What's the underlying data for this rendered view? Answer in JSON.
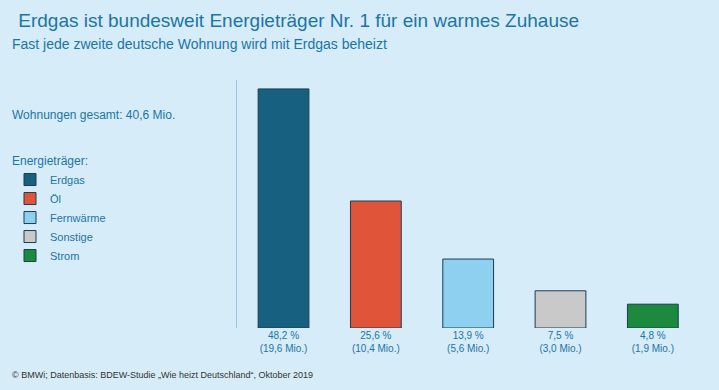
{
  "chart_data": {
    "type": "bar",
    "title": "Erdgas ist bundesweit Energieträger Nr. 1 für ein warmes Zuhause",
    "subtitle": "Fast jede zweite deutsche Wohnung wird mit Erdgas beheizt",
    "total_text": "Wohnungen gesamt: 40,6 Mio.",
    "legend_title": "Energieträger:",
    "source": "© BMWi; Datenbasis: BDEW-Studie „Wie heizt Deutschland“, Oktober 2019",
    "categories": [
      "Erdgas",
      "Öl",
      "Fernwärme",
      "Sonstige",
      "Strom"
    ],
    "values": [
      48.2,
      25.6,
      13.9,
      7.5,
      4.8
    ],
    "value_labels": [
      "48,2 %",
      "25,6 %",
      "13,9 %",
      "7,5 %",
      "4,8 %"
    ],
    "apartments_millions": [
      19.6,
      10.4,
      5.6,
      3.0,
      1.9
    ],
    "apartments_labels": [
      "(19,6 Mio.)",
      "(10,4 Mio.)",
      "(5,6 Mio.)",
      "(3,0 Mio.)",
      "(1,9 Mio.)"
    ],
    "colors": [
      "#17607f",
      "#e0553a",
      "#8ed0f0",
      "#c9c9c9",
      "#1c8a3e"
    ],
    "ylim": [
      0,
      50
    ],
    "yticks": [],
    "grid": false,
    "legend": "left",
    "data_labels": true,
    "tick_labels": false
  }
}
